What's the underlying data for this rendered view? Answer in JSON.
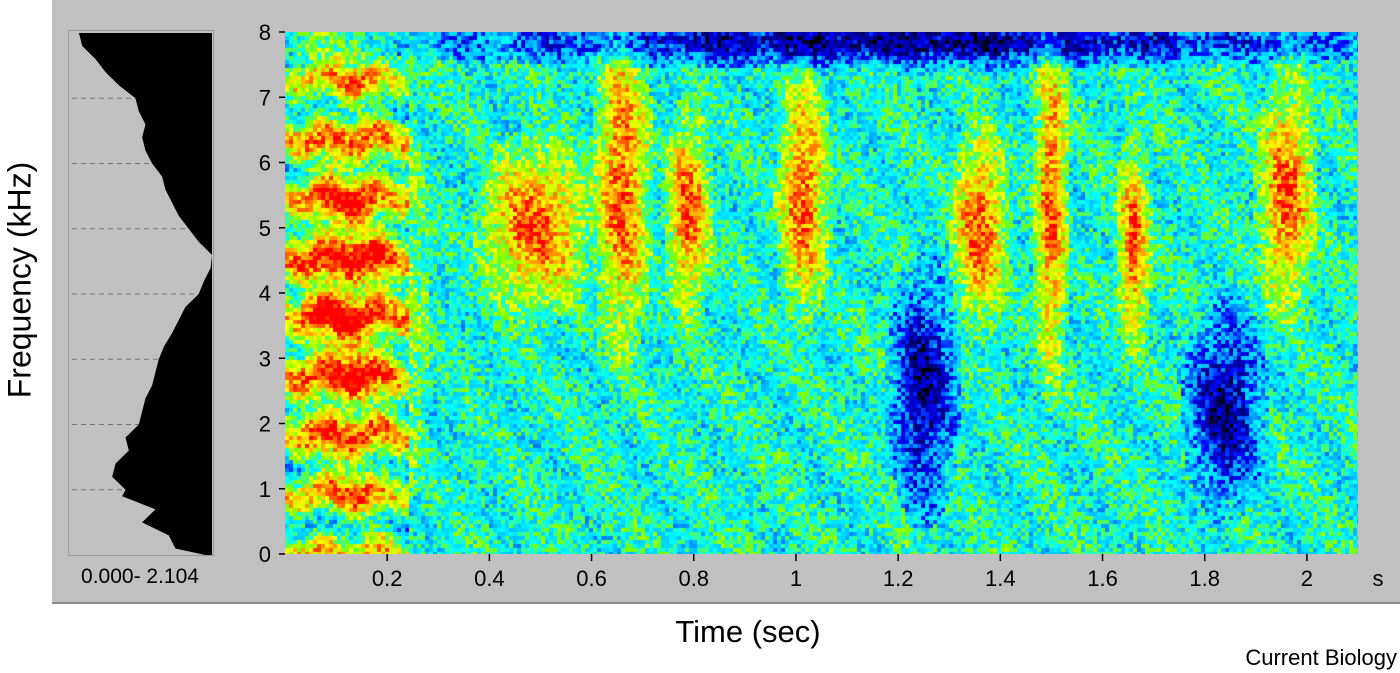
{
  "figure": {
    "ylabel": "Frequency (kHz)",
    "xlabel": "Time (sec)",
    "power_range_label": "0.000- 2.104",
    "credit": "Current Biology"
  },
  "colors": {
    "panel_bg": "#c0c0c0",
    "power_fill": "#000000",
    "colormap": [
      "#000000",
      "#00008b",
      "#0000ff",
      "#00bfff",
      "#00ffff",
      "#7fff00",
      "#ffff00",
      "#ff7f00",
      "#ff0000"
    ]
  },
  "chart_data": [
    {
      "type": "heatmap",
      "title": "",
      "xlabel": "Time (sec)",
      "ylabel": "Frequency (kHz)",
      "xlim": [
        0,
        2.1
      ],
      "ylim": [
        0,
        8
      ],
      "x_ticks": [
        0.2,
        0.4,
        0.6,
        0.8,
        1.0,
        1.2,
        1.4,
        1.6,
        1.8,
        2.0
      ],
      "x_tick_labels": [
        "0.2",
        "0.4",
        "0.6",
        "0.8",
        "1",
        "1.2",
        "1.4",
        "1.6",
        "1.8",
        "2"
      ],
      "x_unit_label": "s",
      "y_ticks": [
        0,
        1,
        2,
        3,
        4,
        5,
        6,
        7,
        8
      ],
      "y_tick_labels": [
        "0",
        "1",
        "2",
        "3",
        "4",
        "5",
        "6",
        "7",
        "8"
      ],
      "colormap": "jet",
      "high_energy_regions": [
        {
          "t": [
            0.0,
            0.24
          ],
          "f": [
            0.2,
            7.5
          ],
          "note": "stacked harmonic bands"
        },
        {
          "t": [
            0.4,
            0.58
          ],
          "f": [
            4.0,
            6.0
          ]
        },
        {
          "t": [
            0.62,
            0.7
          ],
          "f": [
            3.5,
            7.8
          ]
        },
        {
          "t": [
            0.76,
            0.82
          ],
          "f": [
            4.0,
            6.5
          ]
        },
        {
          "t": [
            0.98,
            1.05
          ],
          "f": [
            4.0,
            7.0
          ]
        },
        {
          "t": [
            1.32,
            1.4
          ],
          "f": [
            3.8,
            6.2
          ]
        },
        {
          "t": [
            1.48,
            1.52
          ],
          "f": [
            3.0,
            7.8
          ]
        },
        {
          "t": [
            1.64,
            1.68
          ],
          "f": [
            3.5,
            6.0
          ]
        },
        {
          "t": [
            1.92,
            2.0
          ],
          "f": [
            4.0,
            7.0
          ]
        }
      ],
      "low_energy_regions": [
        {
          "t": [
            1.2,
            1.3
          ],
          "f": [
            1.0,
            4.0
          ]
        },
        {
          "t": [
            1.78,
            1.9
          ],
          "f": [
            1.0,
            3.5
          ]
        },
        {
          "t": [
            0.3,
            2.1
          ],
          "f": [
            7.7,
            8.0
          ]
        }
      ]
    },
    {
      "type": "area",
      "title": "",
      "orientation": "horizontal",
      "range_label": "0.000- 2.104",
      "xlim": [
        0,
        2.104
      ],
      "ylim": [
        0,
        8
      ],
      "y_gridlines": [
        1,
        2,
        3,
        4,
        5,
        6,
        7
      ],
      "y": [
        0.0,
        0.1,
        0.3,
        0.5,
        0.7,
        0.9,
        1.0,
        1.2,
        1.4,
        1.6,
        1.8,
        2.0,
        2.2,
        2.4,
        2.6,
        2.8,
        3.0,
        3.2,
        3.4,
        3.6,
        3.8,
        4.0,
        4.2,
        4.4,
        4.6,
        4.8,
        5.0,
        5.2,
        5.4,
        5.6,
        5.8,
        6.0,
        6.2,
        6.4,
        6.6,
        6.8,
        7.0,
        7.2,
        7.4,
        7.6,
        7.8,
        8.0
      ],
      "values": [
        0.1,
        0.55,
        0.65,
        1.05,
        0.85,
        1.35,
        1.3,
        1.5,
        1.45,
        1.25,
        1.3,
        1.1,
        1.05,
        1.0,
        0.9,
        0.85,
        0.8,
        0.72,
        0.6,
        0.5,
        0.4,
        0.2,
        0.12,
        0.02,
        0.0,
        0.2,
        0.35,
        0.5,
        0.6,
        0.7,
        0.75,
        0.9,
        1.0,
        1.05,
        1.0,
        1.1,
        1.15,
        1.4,
        1.6,
        1.75,
        1.95,
        2.0
      ]
    }
  ]
}
